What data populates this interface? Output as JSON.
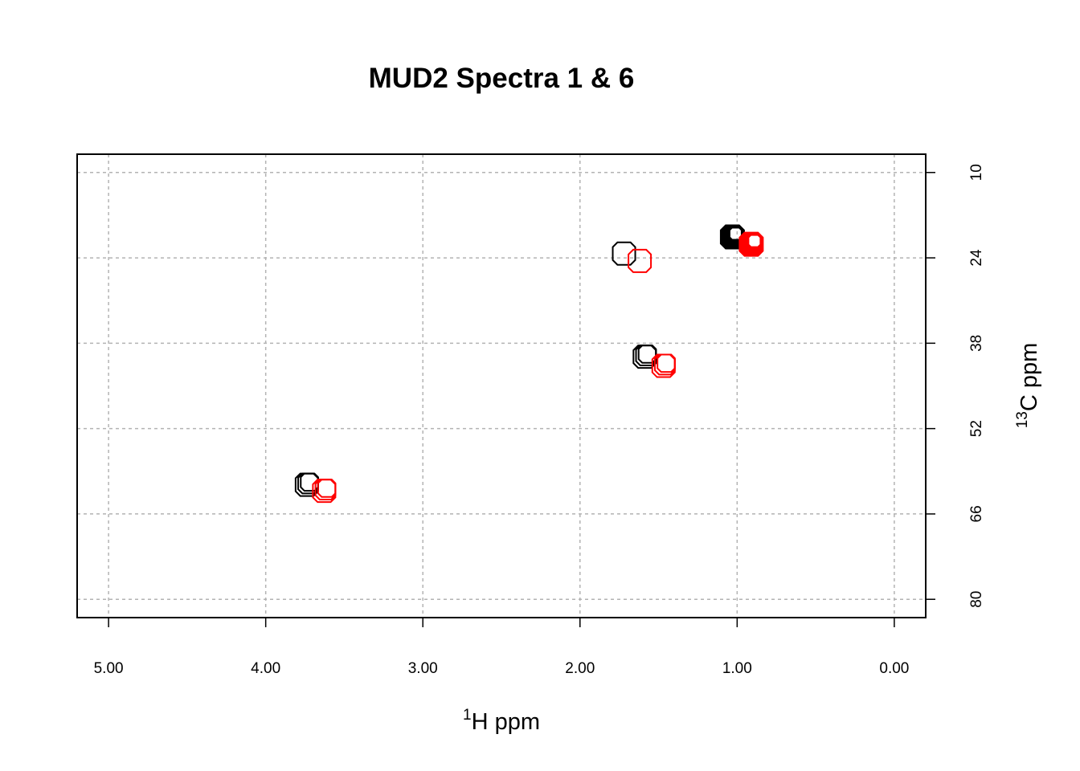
{
  "chart_data": {
    "type": "contour",
    "title": "MUD2 Spectra 1 & 6",
    "xlabel": {
      "sup": "1",
      "text": "H ppm"
    },
    "ylabel": {
      "sup": "13",
      "text": "C ppm"
    },
    "xlim": [
      5.2,
      -0.2
    ],
    "ylim": [
      7,
      83
    ],
    "x_ticks": [
      5.0,
      4.0,
      3.0,
      2.0,
      1.0,
      0.0
    ],
    "x_tick_labels": [
      "5.00",
      "4.00",
      "3.00",
      "2.00",
      "1.00",
      "0.00"
    ],
    "y_ticks": [
      10,
      24,
      38,
      52,
      66,
      80
    ],
    "y_tick_labels": [
      "10",
      "24",
      "38",
      "52",
      "66",
      "80"
    ],
    "y_axis_side": "right",
    "grid": true,
    "series": [
      {
        "color": "#000000",
        "peaks": [
          {
            "x": 1.02,
            "y": 20.3,
            "levels": 6
          },
          {
            "x": 1.72,
            "y": 23.3,
            "levels": 1
          },
          {
            "x": 1.58,
            "y": 40.0,
            "levels": 3
          },
          {
            "x": 3.73,
            "y": 61.0,
            "levels": 3
          }
        ]
      },
      {
        "color": "#ff0000",
        "peaks": [
          {
            "x": 0.9,
            "y": 21.5,
            "levels": 6
          },
          {
            "x": 1.62,
            "y": 24.5,
            "levels": 1
          },
          {
            "x": 1.46,
            "y": 41.5,
            "levels": 3
          },
          {
            "x": 3.62,
            "y": 62.0,
            "levels": 3
          }
        ]
      }
    ]
  }
}
